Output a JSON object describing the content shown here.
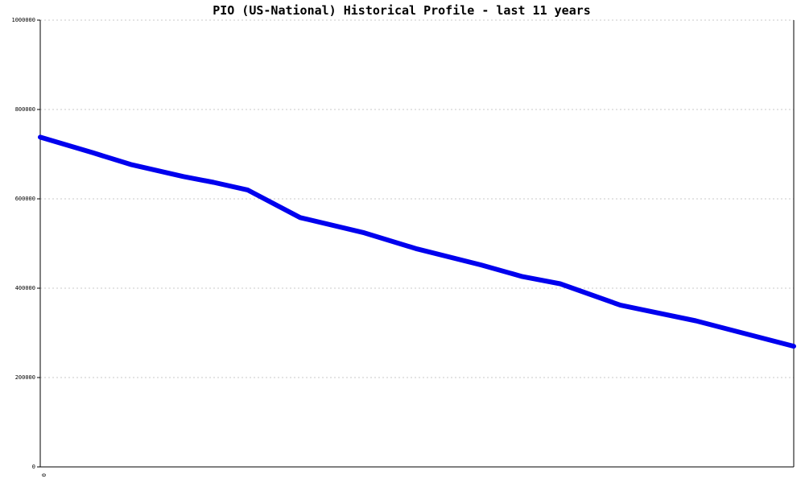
{
  "chart_data": {
    "type": "line",
    "title": "PIO (US-National) Historical Profile - last 11 years",
    "xlabel": "",
    "ylabel": "",
    "ylim": [
      0,
      1000000
    ],
    "xlim": [
      0,
      1
    ],
    "yticks": [
      0,
      200000,
      400000,
      600000,
      800000,
      1000000
    ],
    "ytick_labels": [
      "0",
      "200000",
      "400000",
      "600000",
      "800000",
      "1000000"
    ],
    "xtick_labels": [
      "0"
    ],
    "grid": true,
    "legend": "none",
    "series": [
      {
        "color": "#0000ee",
        "x": [
          0,
          0.07,
          0.12,
          0.19,
          0.23,
          0.275,
          0.345,
          0.43,
          0.5,
          0.585,
          0.64,
          0.69,
          0.77,
          0.87,
          1.0
        ],
        "values": [
          738000,
          703000,
          677000,
          650000,
          637000,
          620000,
          558000,
          524000,
          488000,
          452000,
          426000,
          410000,
          362000,
          327000,
          270000
        ]
      }
    ]
  }
}
